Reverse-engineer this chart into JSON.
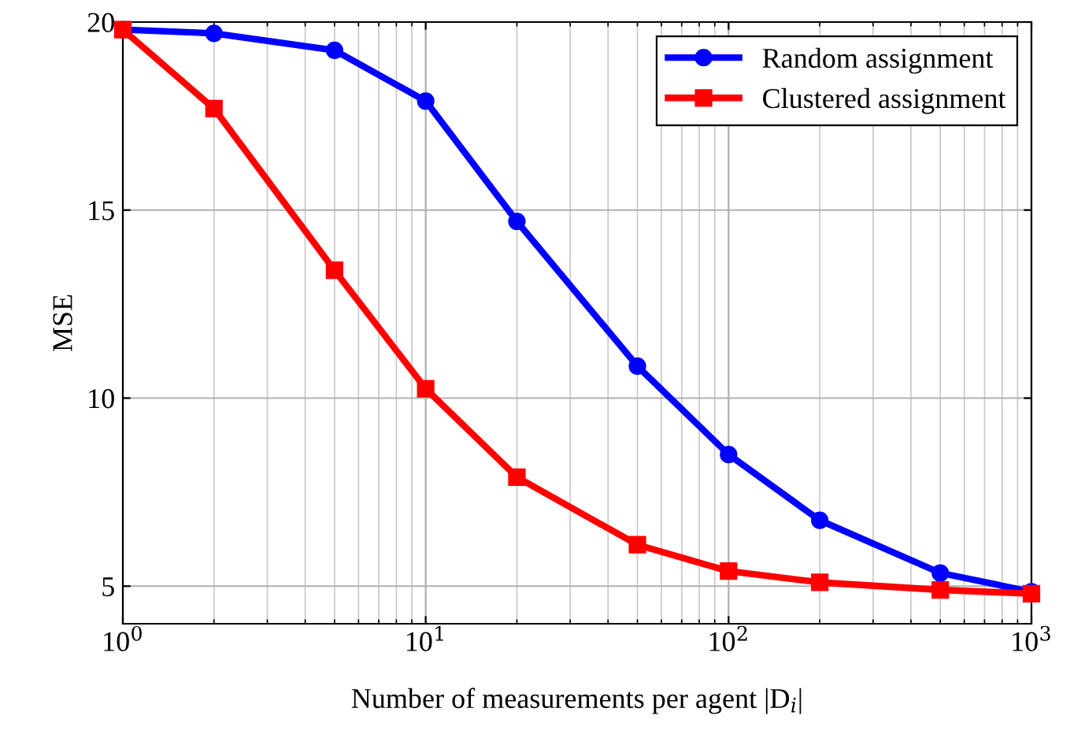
{
  "chart_data": {
    "type": "line",
    "xlabel": "Number of measurements per agent |D$_{i}$|",
    "ylabel": "MSE",
    "x": [
      1,
      2,
      5,
      10,
      20,
      50,
      100,
      200,
      500,
      1000
    ],
    "series": [
      {
        "name": "Random assignment",
        "color": "#0000ff",
        "marker": "circle",
        "values": [
          19.8,
          19.7,
          19.25,
          17.9,
          14.7,
          10.85,
          8.5,
          6.75,
          5.35,
          4.85
        ]
      },
      {
        "name": "Clustered assignment",
        "color": "#ff0000",
        "marker": "square",
        "values": [
          19.8,
          17.7,
          13.4,
          10.25,
          7.9,
          6.1,
          5.4,
          5.1,
          4.9,
          4.8
        ]
      }
    ],
    "log": "x",
    "xlim": [
      1,
      1000
    ],
    "xticks": [
      {
        "value": 1,
        "label": "10$^{0}$"
      },
      {
        "value": 10,
        "label": "10$^{1}$"
      },
      {
        "value": 100,
        "label": "10$^{2}$"
      },
      {
        "value": 1000,
        "label": "10$^{3}$"
      }
    ],
    "ylim": [
      4,
      20
    ],
    "yticks": [
      5,
      10,
      15,
      20
    ],
    "grid": true,
    "legend": "top right",
    "line_style": "solid"
  }
}
